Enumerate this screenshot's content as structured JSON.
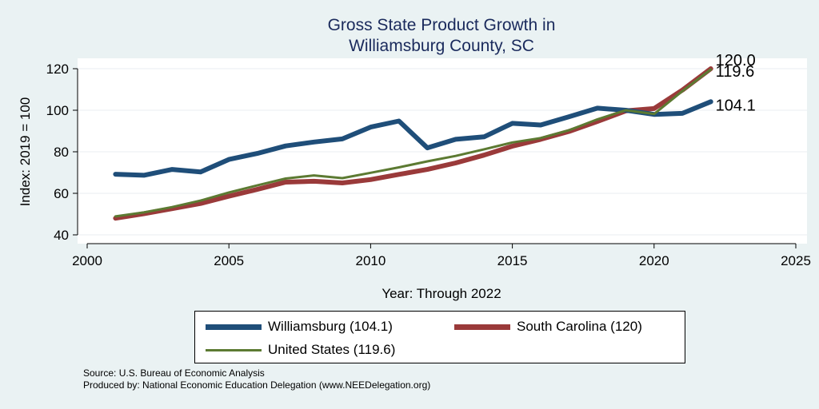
{
  "chart_data": {
    "type": "line",
    "title": [
      "Gross State Product Growth in",
      "Williamsburg County, SC"
    ],
    "xlabel": "Year: Through 2022",
    "ylabel": "Index: 2019 = 100",
    "xlim": [
      2000,
      2025
    ],
    "ylim": [
      40,
      120
    ],
    "xticks": [
      2000,
      2005,
      2010,
      2015,
      2020,
      2025
    ],
    "yticks": [
      40,
      60,
      80,
      100,
      120
    ],
    "x": [
      2001,
      2002,
      2003,
      2004,
      2005,
      2006,
      2007,
      2008,
      2009,
      2010,
      2011,
      2012,
      2013,
      2014,
      2015,
      2016,
      2017,
      2018,
      2019,
      2020,
      2021,
      2022
    ],
    "series": [
      {
        "name": "Williamsburg",
        "legend": "Williamsburg  (104.1)",
        "color": "#1f4e79",
        "width": "thick",
        "end_label": "104.1",
        "values": [
          69.2,
          68.7,
          71.5,
          70.3,
          76.3,
          79.2,
          82.8,
          84.7,
          86.2,
          91.9,
          94.8,
          81.9,
          86.0,
          87.2,
          93.7,
          92.9,
          96.9,
          101.0,
          100.0,
          98.0,
          98.5,
          104.1
        ]
      },
      {
        "name": "South Carolina",
        "legend": "South Carolina (120)",
        "color": "#9a3a3a",
        "width": "thick",
        "end_label": "120.0",
        "values": [
          48.0,
          50.2,
          52.6,
          55.1,
          58.6,
          61.9,
          65.4,
          65.8,
          65.0,
          66.6,
          69.1,
          71.5,
          74.6,
          78.4,
          82.7,
          86.0,
          89.8,
          94.6,
          99.7,
          100.8,
          109.7,
          120.0
        ]
      },
      {
        "name": "United States",
        "legend": "United States (119.6)",
        "color": "#5c7a32",
        "width": "thin",
        "end_label": "119.6",
        "values": [
          48.9,
          50.8,
          53.4,
          56.5,
          60.4,
          63.8,
          67.1,
          68.6,
          67.3,
          69.9,
          72.5,
          75.4,
          78.0,
          81.2,
          84.5,
          86.6,
          90.4,
          95.6,
          100.0,
          98.2,
          109.2,
          119.6
        ]
      }
    ],
    "legend_position": "bottom",
    "grid": true
  },
  "footer": {
    "source": "Source: U.S. Bureau of Economic Analysis",
    "produced": "Produced by: National Economic Education Delegation (www.NEEDelegation.org)"
  }
}
